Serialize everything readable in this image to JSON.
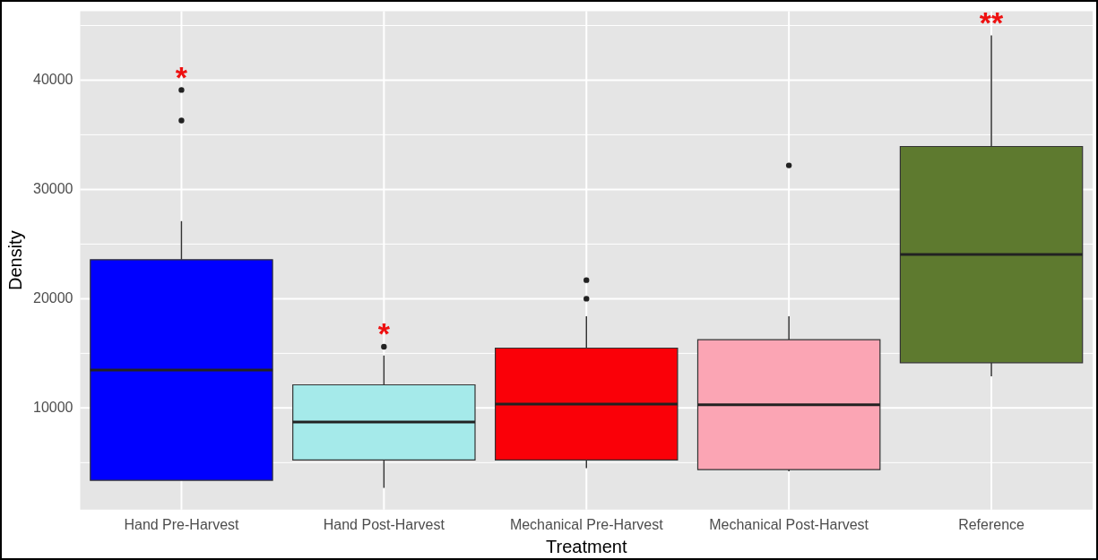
{
  "chart_data": {
    "type": "box",
    "xlabel": "Treatment",
    "ylabel": "Density",
    "categories": [
      "Hand Pre-Harvest",
      "Hand Post-Harvest",
      "Mechanical Pre-Harvest",
      "Mechanical Post-Harvest",
      "Reference"
    ],
    "colors": [
      "#0000ff",
      "#a5eaea",
      "#fa0008",
      "#fba5b4",
      "#5e7a2f"
    ],
    "boxes": [
      {
        "low": 3380,
        "q1": 3380,
        "median": 13470,
        "q3": 23570,
        "high": 27100,
        "outliers": [
          36300,
          39100
        ]
      },
      {
        "low": 2700,
        "q1": 5240,
        "median": 8710,
        "q3": 12120,
        "high": 14800,
        "outliers": [
          15600
        ]
      },
      {
        "low": 4500,
        "q1": 5250,
        "median": 10350,
        "q3": 15480,
        "high": 18400,
        "outliers": [
          20000,
          21700
        ]
      },
      {
        "low": 4200,
        "q1": 4370,
        "median": 10300,
        "q3": 16250,
        "high": 18400,
        "outliers": [
          32200
        ]
      },
      {
        "low": 12900,
        "q1": 14140,
        "median": 24050,
        "q3": 33930,
        "high": 44100
      }
    ],
    "ylim": [
      700,
      46300
    ],
    "yticks": [
      10000,
      20000,
      30000,
      40000
    ],
    "grid": true,
    "annotations": [
      "*",
      "*",
      "**"
    ]
  }
}
